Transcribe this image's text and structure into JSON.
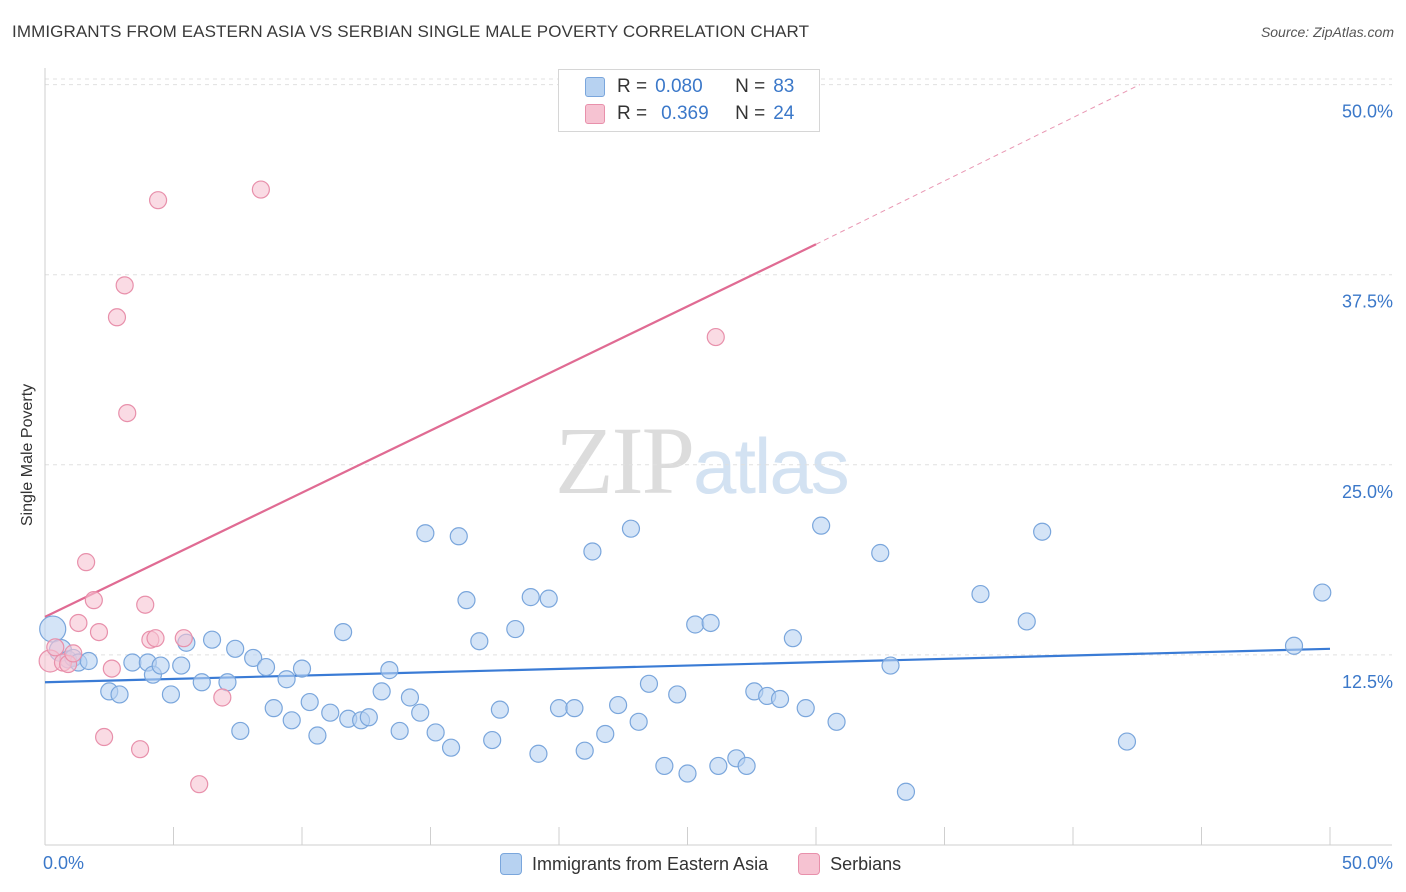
{
  "header": {
    "title": "IMMIGRANTS FROM EASTERN ASIA VS SERBIAN SINGLE MALE POVERTY CORRELATION CHART",
    "source": "Source: ZipAtlas.com"
  },
  "watermark": {
    "zip": "ZIP",
    "atlas": "atlas"
  },
  "legend_top": {
    "rows": [
      {
        "r_label": "R =",
        "r_value": "0.080",
        "n_label": "N =",
        "n_value": "83"
      },
      {
        "r_label": "R =",
        "r_value": "0.369",
        "n_label": "N =",
        "n_value": "24"
      }
    ]
  },
  "legend_bottom": {
    "items": [
      "Immigrants from Eastern Asia",
      "Serbians"
    ]
  },
  "colors": {
    "blue_fill": "#b7d2f1",
    "blue_stroke": "#7aa6dc",
    "blue_line": "#3a7bd5",
    "pink_fill": "#f6c3d2",
    "pink_stroke": "#e890ab",
    "pink_line": "#e06b93",
    "tick_label": "#3b78c9",
    "grid": "#e0e0e0"
  },
  "chart_data": {
    "type": "scatter",
    "title": "IMMIGRANTS FROM EASTERN ASIA VS SERBIAN SINGLE MALE POVERTY CORRELATION CHART",
    "xlabel": "",
    "ylabel": "Single Male Poverty",
    "xlim": [
      0,
      50
    ],
    "ylim": [
      0,
      50.5
    ],
    "x_tick_labels": [
      "0.0%",
      "50.0%"
    ],
    "y_ticks": [
      12.5,
      25.0,
      37.5,
      50.0
    ],
    "y_tick_labels": [
      "12.5%",
      "25.0%",
      "37.5%",
      "50.0%"
    ],
    "grid": true,
    "series": [
      {
        "name": "Immigrants from Eastern Asia",
        "R": 0.08,
        "N": 83,
        "trend": {
          "x": [
            0,
            50
          ],
          "y": [
            10.7,
            12.9
          ]
        },
        "points": [
          [
            0.3,
            14.2
          ],
          [
            0.6,
            12.8
          ],
          [
            0.9,
            12.2
          ],
          [
            1.1,
            12.3
          ],
          [
            1.3,
            12.0
          ],
          [
            1.7,
            12.1
          ],
          [
            2.5,
            10.1
          ],
          [
            2.9,
            9.9
          ],
          [
            3.4,
            12.0
          ],
          [
            4.0,
            12.0
          ],
          [
            4.2,
            11.2
          ],
          [
            4.5,
            11.8
          ],
          [
            4.9,
            9.9
          ],
          [
            5.3,
            11.8
          ],
          [
            5.5,
            13.3
          ],
          [
            6.1,
            10.7
          ],
          [
            6.5,
            13.5
          ],
          [
            7.1,
            10.7
          ],
          [
            7.4,
            12.9
          ],
          [
            7.6,
            7.5
          ],
          [
            8.1,
            12.3
          ],
          [
            8.6,
            11.7
          ],
          [
            8.9,
            9.0
          ],
          [
            9.4,
            10.9
          ],
          [
            9.6,
            8.2
          ],
          [
            10.0,
            11.6
          ],
          [
            10.3,
            9.4
          ],
          [
            10.6,
            7.2
          ],
          [
            11.1,
            8.7
          ],
          [
            11.6,
            14.0
          ],
          [
            11.8,
            8.3
          ],
          [
            12.3,
            8.2
          ],
          [
            12.6,
            8.4
          ],
          [
            13.1,
            10.1
          ],
          [
            13.4,
            11.5
          ],
          [
            13.8,
            7.5
          ],
          [
            14.2,
            9.7
          ],
          [
            14.6,
            8.7
          ],
          [
            14.8,
            20.5
          ],
          [
            15.2,
            7.4
          ],
          [
            15.8,
            6.4
          ],
          [
            16.1,
            20.3
          ],
          [
            16.4,
            16.1
          ],
          [
            16.9,
            13.4
          ],
          [
            17.4,
            6.9
          ],
          [
            17.7,
            8.9
          ],
          [
            18.3,
            14.2
          ],
          [
            18.9,
            16.3
          ],
          [
            19.2,
            6.0
          ],
          [
            19.6,
            16.2
          ],
          [
            20.0,
            9.0
          ],
          [
            20.6,
            9.0
          ],
          [
            21.0,
            6.2
          ],
          [
            21.3,
            19.3
          ],
          [
            21.8,
            7.3
          ],
          [
            22.3,
            9.2
          ],
          [
            22.8,
            20.8
          ],
          [
            23.1,
            8.1
          ],
          [
            23.5,
            10.6
          ],
          [
            24.1,
            5.2
          ],
          [
            24.6,
            9.9
          ],
          [
            25.0,
            4.7
          ],
          [
            25.3,
            14.5
          ],
          [
            25.9,
            14.6
          ],
          [
            26.2,
            5.2
          ],
          [
            26.9,
            5.7
          ],
          [
            27.3,
            5.2
          ],
          [
            27.6,
            10.1
          ],
          [
            28.1,
            9.8
          ],
          [
            28.6,
            9.6
          ],
          [
            29.1,
            13.6
          ],
          [
            29.6,
            9.0
          ],
          [
            30.2,
            21.0
          ],
          [
            30.8,
            8.1
          ],
          [
            32.5,
            19.2
          ],
          [
            32.9,
            11.8
          ],
          [
            33.5,
            3.5
          ],
          [
            36.4,
            16.5
          ],
          [
            38.2,
            14.7
          ],
          [
            38.8,
            20.6
          ],
          [
            42.1,
            6.8
          ],
          [
            48.6,
            13.1
          ],
          [
            49.7,
            16.6
          ]
        ]
      },
      {
        "name": "Serbians",
        "R": 0.369,
        "N": 24,
        "trend": {
          "x": [
            0,
            30
          ],
          "y": [
            15.0,
            39.5
          ]
        },
        "trend_extended": {
          "x": [
            30,
            42.6
          ],
          "y": [
            39.5,
            50.0
          ]
        },
        "points": [
          [
            0.2,
            12.1
          ],
          [
            0.4,
            13.0
          ],
          [
            0.7,
            12.0
          ],
          [
            0.9,
            11.9
          ],
          [
            1.1,
            12.6
          ],
          [
            1.3,
            14.6
          ],
          [
            1.6,
            18.6
          ],
          [
            1.9,
            16.1
          ],
          [
            2.1,
            14.0
          ],
          [
            2.3,
            7.1
          ],
          [
            2.6,
            11.6
          ],
          [
            2.8,
            34.7
          ],
          [
            3.1,
            36.8
          ],
          [
            3.2,
            28.4
          ],
          [
            3.7,
            6.3
          ],
          [
            3.9,
            15.8
          ],
          [
            4.1,
            13.5
          ],
          [
            4.3,
            13.6
          ],
          [
            4.4,
            42.4
          ],
          [
            5.4,
            13.6
          ],
          [
            6.0,
            4.0
          ],
          [
            6.9,
            9.7
          ],
          [
            8.4,
            43.1
          ],
          [
            26.1,
            33.4
          ]
        ]
      }
    ]
  }
}
